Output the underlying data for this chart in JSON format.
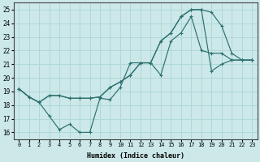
{
  "xlabel": "Humidex (Indice chaleur)",
  "bg_color": "#cce8e8",
  "grid_color": "#b0d8d8",
  "line_color": "#2d7070",
  "xlim": [
    -0.5,
    23.5
  ],
  "ylim": [
    15.5,
    25.5
  ],
  "xticks": [
    0,
    1,
    2,
    3,
    4,
    5,
    6,
    7,
    8,
    9,
    10,
    11,
    12,
    13,
    14,
    15,
    16,
    17,
    18,
    19,
    20,
    21,
    22,
    23
  ],
  "yticks": [
    16,
    17,
    18,
    19,
    20,
    21,
    22,
    23,
    24,
    25
  ],
  "line1_x": [
    0,
    1,
    2,
    3,
    4,
    5,
    6,
    7,
    8,
    9,
    10,
    11,
    12,
    13,
    14,
    15,
    16,
    17,
    18,
    19,
    20,
    21,
    22,
    23
  ],
  "line1_y": [
    19.2,
    18.6,
    18.2,
    18.7,
    18.7,
    18.5,
    18.5,
    18.5,
    18.6,
    19.3,
    19.7,
    20.2,
    21.1,
    21.1,
    22.7,
    23.3,
    24.5,
    25.0,
    25.0,
    24.8,
    23.8,
    21.8,
    21.3,
    21.3
  ],
  "line2_x": [
    0,
    1,
    2,
    3,
    4,
    5,
    6,
    7,
    8,
    9,
    10,
    11,
    12,
    13,
    14,
    15,
    16,
    17,
    18,
    19,
    20,
    21,
    22,
    23
  ],
  "line2_y": [
    19.2,
    18.6,
    18.2,
    17.2,
    16.2,
    16.6,
    16.0,
    16.0,
    18.5,
    18.4,
    19.3,
    21.1,
    21.1,
    21.1,
    20.2,
    22.7,
    23.3,
    24.5,
    22.0,
    21.8,
    21.8,
    21.3,
    21.3,
    21.3
  ],
  "line3_x": [
    0,
    1,
    2,
    3,
    4,
    5,
    6,
    7,
    8,
    9,
    10,
    11,
    12,
    13,
    14,
    15,
    16,
    17,
    18,
    19,
    20,
    21,
    22,
    23
  ],
  "line3_y": [
    19.2,
    18.6,
    18.2,
    18.7,
    18.7,
    18.5,
    18.5,
    18.5,
    18.6,
    19.3,
    19.7,
    20.2,
    21.1,
    21.1,
    22.7,
    23.3,
    24.5,
    25.0,
    25.0,
    20.5,
    21.0,
    21.3,
    21.3,
    21.3
  ]
}
